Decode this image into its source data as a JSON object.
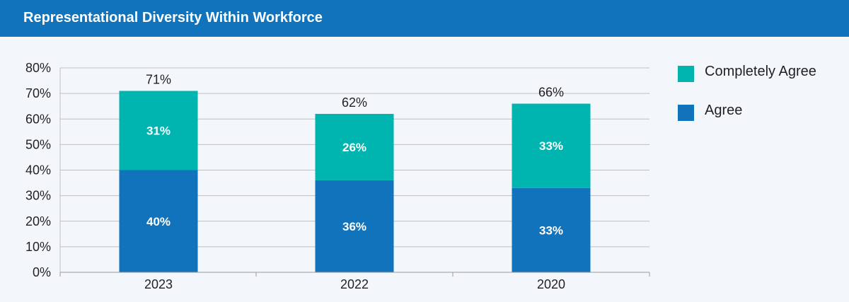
{
  "header": {
    "title": "Representational Diversity Within Workforce"
  },
  "colors": {
    "header_bg": "#1173bb",
    "completely_agree": "#00b5b0",
    "agree": "#1173bb",
    "background": "#f3f7fc"
  },
  "legend": [
    {
      "label": "Completely Agree",
      "color": "#00b5b0"
    },
    {
      "label": "Agree",
      "color": "#1173bb"
    }
  ],
  "chart_data": {
    "type": "bar",
    "stacked": true,
    "title": "Representational Diversity Within Workforce",
    "categories": [
      "2023",
      "2022",
      "2020"
    ],
    "series": [
      {
        "name": "Agree",
        "values": [
          40,
          36,
          33
        ],
        "labels": [
          "40%",
          "36%",
          "33%"
        ],
        "color": "#1173bb"
      },
      {
        "name": "Completely Agree",
        "values": [
          31,
          26,
          33
        ],
        "labels": [
          "31%",
          "26%",
          "33%"
        ],
        "color": "#00b5b0"
      }
    ],
    "totals": [
      71,
      62,
      66
    ],
    "total_labels": [
      "71%",
      "62%",
      "66%"
    ],
    "ylim": [
      0,
      80
    ],
    "yticks": [
      0,
      10,
      20,
      30,
      40,
      50,
      60,
      70,
      80
    ],
    "ytick_labels": [
      "0%",
      "10%",
      "20%",
      "30%",
      "40%",
      "50%",
      "60%",
      "70%",
      "80%"
    ],
    "grid": true,
    "legend_position": "right"
  }
}
